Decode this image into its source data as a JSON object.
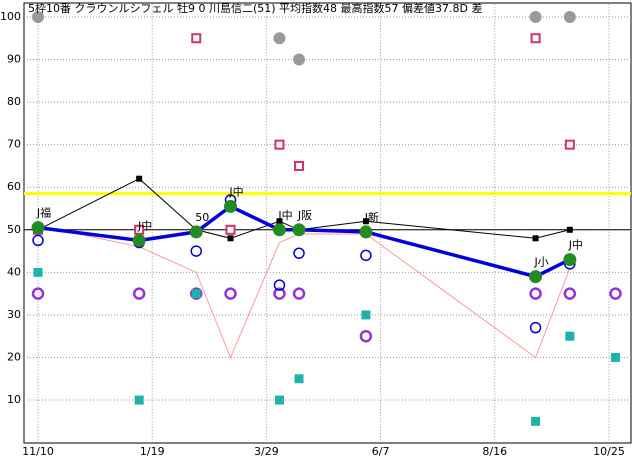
{
  "chart_data": {
    "type": "line",
    "title": "5枠10番 クラウンルシフェル 牡9 0 川島信二(51) 平均指数48 最高指数57 偏差値37.8D 差",
    "x": [
      0,
      62,
      97,
      118,
      148,
      160,
      201,
      305,
      326,
      354
    ],
    "xlim": [
      -8.6,
      363.5
    ],
    "xticks": [
      {
        "value": 0,
        "label": "11/10"
      },
      {
        "value": 70,
        "label": "1/19"
      },
      {
        "value": 140,
        "label": "3/29"
      },
      {
        "value": 210,
        "label": "6/7"
      },
      {
        "value": 280,
        "label": "8/16"
      },
      {
        "value": 350,
        "label": "10/25"
      }
    ],
    "ylim": [
      0,
      103
    ],
    "yticks": [
      10,
      20,
      30,
      40,
      50,
      60,
      70,
      80,
      90,
      100
    ],
    "grid": true,
    "reference_lines": [
      {
        "value": 58.5,
        "color": "#ffff00",
        "width": 3
      },
      {
        "value": 50,
        "color": "#000000",
        "width": 1
      }
    ],
    "series": [
      {
        "color": "#ff9999",
        "line": true,
        "marker": "none",
        "values": [
          51,
          46,
          40,
          20,
          47,
          49,
          49,
          20,
          41,
          null
        ]
      },
      {
        "color": "#000000",
        "line": true,
        "marker": "small-square",
        "values": [
          50,
          62,
          50,
          48,
          52,
          50,
          52,
          48,
          50,
          null
        ]
      },
      {
        "color": "#ff00ff",
        "line": false,
        "marker": "hollow-circle-purple",
        "values": [
          35,
          35,
          35,
          35,
          35,
          35,
          25,
          35,
          35,
          35
        ]
      },
      {
        "color": "#20b2aa",
        "line": false,
        "marker": "square",
        "values": [
          40,
          10,
          35,
          null,
          10,
          15,
          30,
          5,
          25,
          20
        ]
      },
      {
        "color": "#cc3366",
        "line": false,
        "marker": "hollow-square",
        "values": [
          50,
          50,
          95,
          50,
          70,
          65,
          null,
          95,
          70,
          null
        ]
      },
      {
        "color": "#999999",
        "line": false,
        "marker": "circle",
        "values": [
          100,
          null,
          null,
          null,
          95,
          90,
          null,
          100,
          100,
          null
        ]
      },
      {
        "color": "#0000cc",
        "line": false,
        "marker": "hollow-circle",
        "values": [
          47.5,
          47,
          45,
          57,
          37,
          44.5,
          44,
          27,
          42,
          null
        ]
      },
      {
        "color": "#0000dd",
        "line": true,
        "marker": "green-circle",
        "values": [
          50.5,
          47.5,
          49.5,
          55.5,
          50,
          50,
          49.5,
          39,
          43,
          null
        ],
        "point_labels": [
          "J福",
          "J中",
          "50",
          "J中",
          "J中",
          "J阪",
          "J新",
          "J小",
          "J中",
          null
        ]
      }
    ]
  }
}
